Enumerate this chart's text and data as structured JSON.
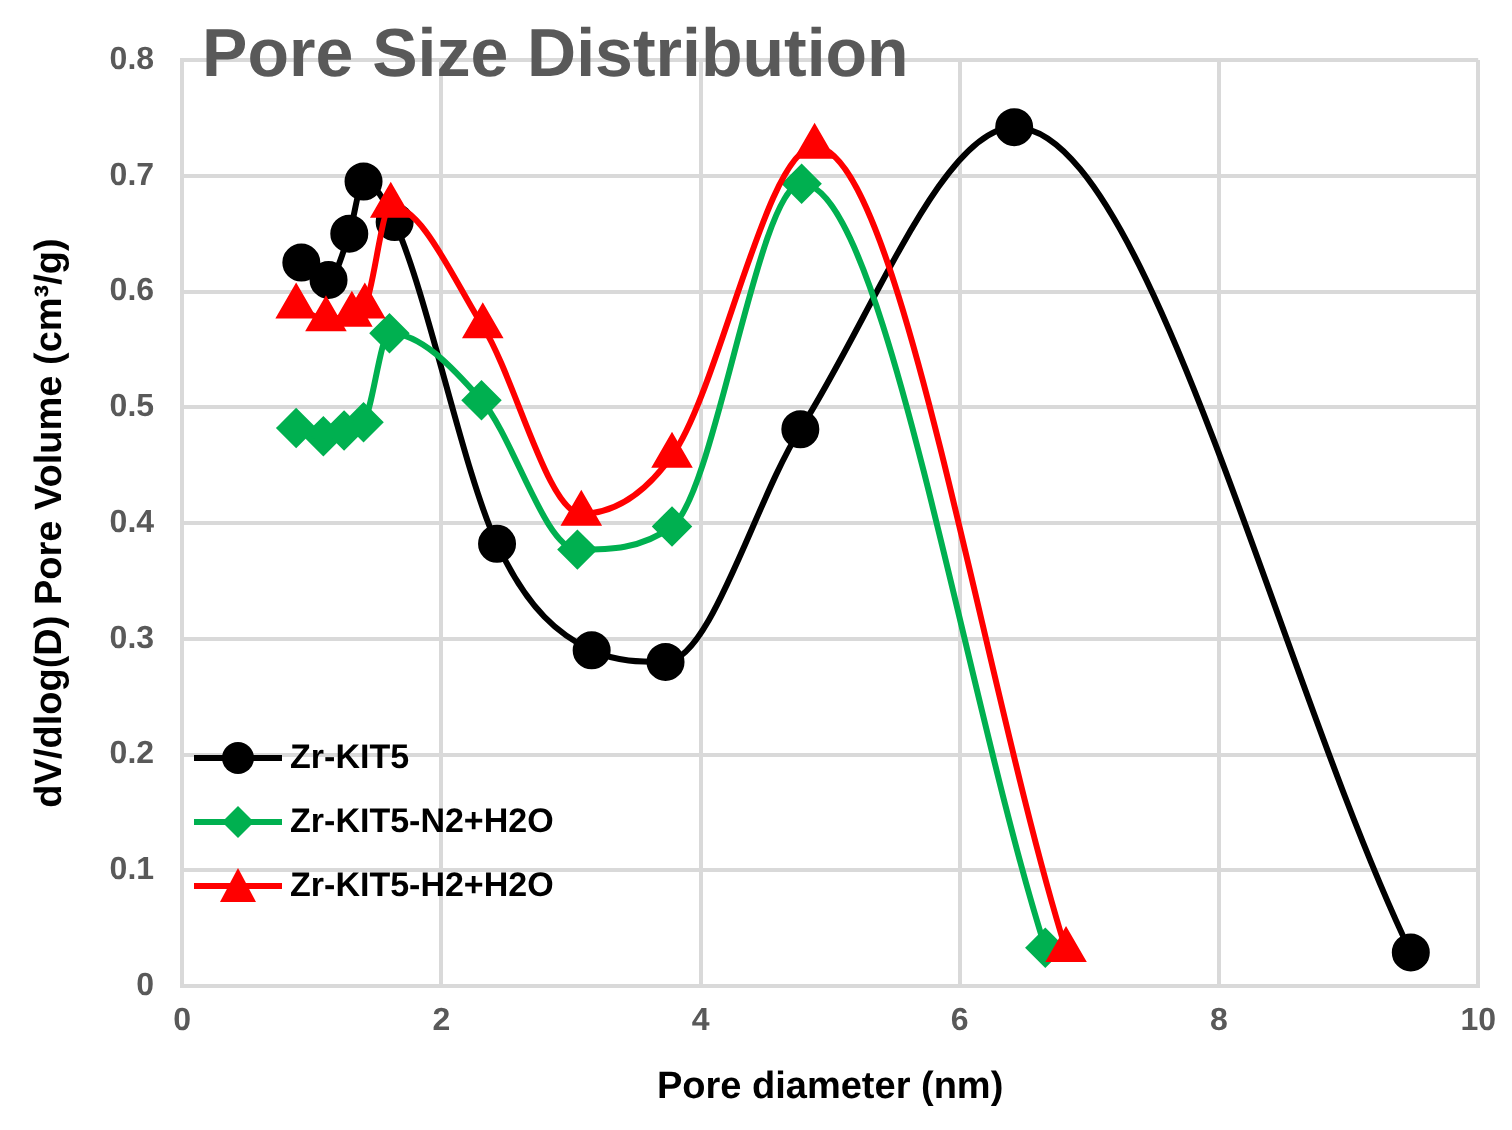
{
  "chart_data": {
    "type": "line",
    "title": "Pore Size Distribution",
    "xlabel": "Pore diameter (nm)",
    "ylabel": "dV/dlog(D) Pore Volume (cm³/g)",
    "xlim": [
      0,
      10
    ],
    "xticks": [
      0,
      2,
      4,
      6,
      8,
      10
    ],
    "ylim": [
      0,
      0.8
    ],
    "yticks": [
      0,
      0.1,
      0.2,
      0.3,
      0.4,
      0.5,
      0.6,
      0.7,
      0.8
    ],
    "grid": true,
    "legend": "bottom left",
    "series": [
      {
        "name": "Zr-KIT5",
        "color": "#000000",
        "marker": "circle",
        "x": [
          0.92,
          1.13,
          1.29,
          1.4,
          1.64,
          2.43,
          3.16,
          3.73,
          4.77,
          6.42,
          9.48
        ],
        "values": [
          0.625,
          0.61,
          0.65,
          0.695,
          0.66,
          0.382,
          0.29,
          0.28,
          0.481,
          0.742,
          0.029
        ]
      },
      {
        "name": "Zr-KIT5-N2+H2O",
        "color": "#00b050",
        "marker": "diamond",
        "x": [
          0.88,
          1.09,
          1.25,
          1.4,
          1.6,
          2.31,
          3.05,
          3.78,
          4.78,
          6.66
        ],
        "values": [
          0.482,
          0.475,
          0.48,
          0.487,
          0.564,
          0.506,
          0.377,
          0.397,
          0.693,
          0.033
        ]
      },
      {
        "name": "Zr-KIT5-H2+H2O",
        "color": "#ff0000",
        "marker": "triangle",
        "x": [
          0.88,
          1.11,
          1.31,
          1.41,
          1.61,
          2.32,
          3.08,
          3.78,
          4.88,
          6.82
        ],
        "values": [
          0.587,
          0.576,
          0.58,
          0.587,
          0.674,
          0.57,
          0.408,
          0.458,
          0.725,
          0.031
        ]
      }
    ]
  }
}
